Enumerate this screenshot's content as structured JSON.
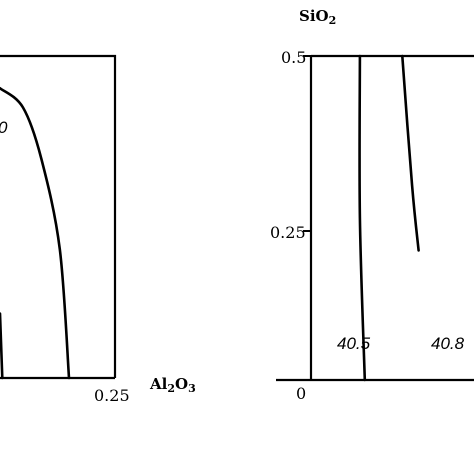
{
  "chart_data": [
    {
      "type": "line",
      "panel": "left",
      "title": "",
      "xlabel": "Al2O3",
      "x_axis_label": {
        "main": "Al",
        "sub1": "2",
        "mid": "O",
        "sub2": "3"
      },
      "ylabel": "",
      "xlim": [
        0,
        0.25
      ],
      "x_ticks": [
        "0.25"
      ],
      "y_ticks": [],
      "grid": false,
      "series": [
        {
          "values": [
            [
              0.0,
              0.45
            ],
            [
              0.05,
              0.42
            ],
            [
              0.09,
              0.34
            ],
            [
              0.13,
              0.2
            ],
            [
              0.15,
              0.0
            ]
          ]
        },
        {
          "values": [
            [
              0.0,
              0.1
            ],
            [
              0.005,
              0.0
            ]
          ]
        }
      ],
      "contour_labels": [
        {
          "text": "0",
          "x": 0.0,
          "y": 0.37
        }
      ]
    },
    {
      "type": "line",
      "panel": "right",
      "title": "",
      "xlabel": "",
      "ylabel": "SiO2",
      "y_axis_label": {
        "main": "SiO",
        "sub": "2"
      },
      "ylim": [
        0,
        0.5
      ],
      "y_ticks": [
        "0",
        "0.25",
        "0.5"
      ],
      "x_ticks": [],
      "grid": false,
      "series": [
        {
          "name": "40.5",
          "values": [
            [
              0.3,
              0.5
            ],
            [
              0.3,
              0.25
            ],
            [
              0.33,
              0.0
            ]
          ]
        },
        {
          "name": "40.8",
          "values": [
            [
              0.56,
              0.5
            ],
            [
              0.62,
              0.3
            ],
            [
              0.66,
              0.2
            ]
          ]
        }
      ],
      "contour_labels": [
        {
          "text": "40.5",
          "x": 0.18,
          "y": 0.1
        },
        {
          "text": "40.8",
          "x": 0.52,
          "y": 0.1
        }
      ]
    }
  ]
}
